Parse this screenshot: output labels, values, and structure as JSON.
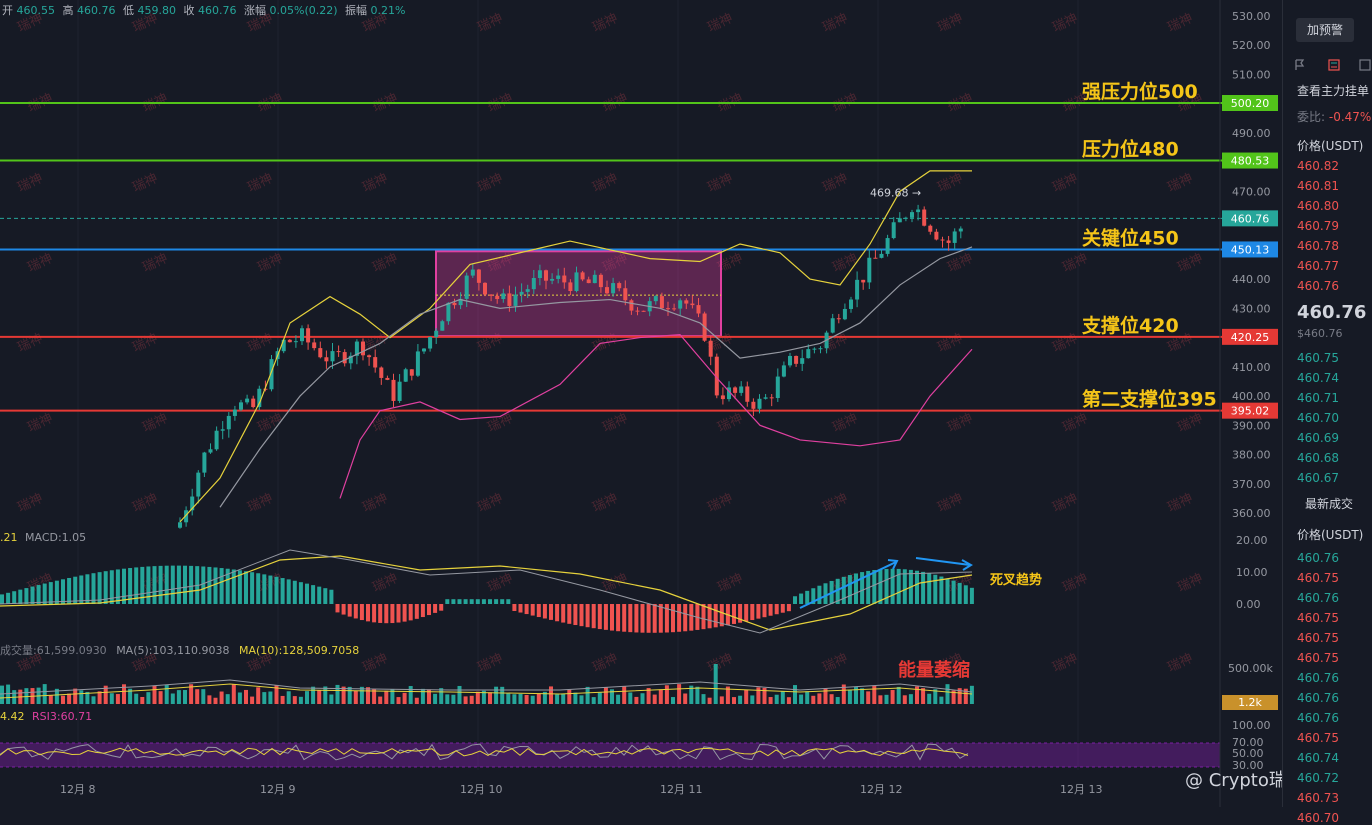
{
  "ohlc": {
    "open_label": "开",
    "open": "460.55",
    "high_label": "高",
    "high": "460.76",
    "low_label": "低",
    "low": "459.80",
    "close_label": "收",
    "close": "460.76",
    "change_label": "涨幅",
    "change": "0.05%(0.22)",
    "amp_label": "振幅",
    "amp": "0.21%"
  },
  "price_axis": [
    "530.00",
    "520.00",
    "510.00",
    "500.00",
    "490.00",
    "480.00",
    "470.00",
    "460.00",
    "450.00",
    "440.00",
    "430.00",
    "420.00",
    "410.00",
    "400.00",
    "390.00",
    "380.00",
    "370.00",
    "360.00"
  ],
  "macd_axis": [
    "20.00",
    "10.00",
    "0.00"
  ],
  "vol_axis": [
    "500.00k"
  ],
  "rsi_axis": [
    "100.00",
    "70.00",
    "50.00",
    "30.00"
  ],
  "time_axis": [
    "12月 8",
    "12月 9",
    "12月 10",
    "12月 11",
    "12月 12",
    "12月 13"
  ],
  "levels": [
    {
      "label": "强压力位500",
      "tag": "500.20",
      "color": "#52c41a",
      "price": 500.2
    },
    {
      "label": "压力位480",
      "tag": "480.53",
      "color": "#52c41a",
      "price": 480.53
    },
    {
      "label": "关键位450",
      "tag": "450.13",
      "color": "#1e88e5",
      "price": 450.13
    },
    {
      "label": "支撑位420",
      "tag": "420.25",
      "color": "#e53935",
      "price": 420.25
    },
    {
      "label": "第二支撑位395",
      "tag": "395.02",
      "color": "#e53935",
      "price": 395.02
    }
  ],
  "current_price_tag": "460.76",
  "peak_label": "469.68",
  "volume_tag": "1.2k",
  "watermark": "瑞神",
  "macd_legend": {
    "left": ".21",
    "macd": "MACD:1.05"
  },
  "vol_legend": {
    "vol": "成交量:61,599.0930",
    "ma5": "MA(5):103,110.9038",
    "ma10": "MA(10):128,509.7058"
  },
  "rsi_legend": {
    "left": "4.42",
    "rsi3": "RSI3:60.71"
  },
  "annotations": {
    "death_cross": "死叉趋势",
    "volume_shrink": "能量萎缩"
  },
  "brand": "@ Crypto瑞神",
  "right_panel": {
    "alert_button": "加预警",
    "main_orders": "查看主力挂单",
    "ratio_label": "委比:",
    "ratio_value": "-0.47%",
    "price_header": "价格(USDT)",
    "asks": [
      "460.82",
      "460.81",
      "460.80",
      "460.79",
      "460.78",
      "460.77",
      "460.76"
    ],
    "last_price": "460.76",
    "last_price_sub": "$460.76",
    "bids": [
      "460.75",
      "460.74",
      "460.71",
      "460.70",
      "460.69",
      "460.68",
      "460.67"
    ],
    "trades_title": "最新成交",
    "trades_header": "价格(USDT)",
    "trades": [
      {
        "p": "460.76",
        "c": "green"
      },
      {
        "p": "460.75",
        "c": "red"
      },
      {
        "p": "460.76",
        "c": "green"
      },
      {
        "p": "460.75",
        "c": "red"
      },
      {
        "p": "460.75",
        "c": "red"
      },
      {
        "p": "460.75",
        "c": "red"
      },
      {
        "p": "460.76",
        "c": "green"
      },
      {
        "p": "460.76",
        "c": "green"
      },
      {
        "p": "460.76",
        "c": "green"
      },
      {
        "p": "460.75",
        "c": "red"
      },
      {
        "p": "460.74",
        "c": "green"
      },
      {
        "p": "460.72",
        "c": "green"
      },
      {
        "p": "460.73",
        "c": "red"
      },
      {
        "p": "460.70",
        "c": "red"
      }
    ]
  },
  "colors": {
    "up": "#26a69a",
    "down": "#ef5350",
    "bg": "#161a25",
    "box": "#e040a0",
    "ma_yellow": "#e6d23c",
    "boll_pink": "#e040a0",
    "gray": "#9598a1"
  }
}
